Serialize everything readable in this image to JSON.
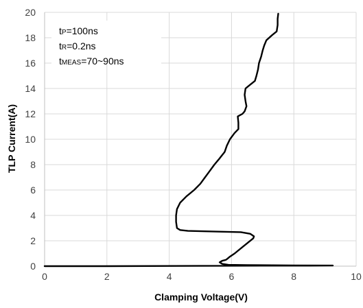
{
  "chart_data": {
    "type": "line",
    "title": "",
    "xlabel": "Clamping Voltage(V)",
    "ylabel": "TLP Current(A)",
    "xlim": [
      0,
      10
    ],
    "ylim": [
      0,
      20
    ],
    "x_ticks": [
      0,
      2,
      4,
      6,
      8,
      10
    ],
    "y_ticks": [
      0,
      2,
      4,
      6,
      8,
      10,
      12,
      14,
      16,
      18,
      20
    ],
    "grid": true,
    "legend": "none",
    "annotations": [
      {
        "prefix": "t",
        "sub": "P",
        "suffix": "=100ns"
      },
      {
        "prefix": "t",
        "sub": "R",
        "suffix": "=0.2ns"
      },
      {
        "prefix": "t",
        "sub": "MEAS",
        "suffix": "=70~90ns"
      }
    ],
    "series": [
      {
        "color": "#000000",
        "points": [
          [
            0.0,
            0.0
          ],
          [
            2.0,
            0.0
          ],
          [
            5.0,
            0.02
          ],
          [
            7.0,
            0.04
          ],
          [
            8.5,
            0.04
          ],
          [
            9.25,
            0.05
          ],
          [
            8.0,
            0.06
          ],
          [
            6.5,
            0.08
          ],
          [
            5.9,
            0.1
          ],
          [
            5.7,
            0.18
          ],
          [
            5.62,
            0.3
          ],
          [
            5.7,
            0.42
          ],
          [
            5.82,
            0.5
          ],
          [
            5.85,
            0.55
          ],
          [
            5.95,
            0.75
          ],
          [
            6.1,
            1.0
          ],
          [
            6.3,
            1.4
          ],
          [
            6.5,
            1.8
          ],
          [
            6.7,
            2.2
          ],
          [
            6.72,
            2.35
          ],
          [
            6.6,
            2.55
          ],
          [
            6.3,
            2.68
          ],
          [
            5.6,
            2.72
          ],
          [
            4.6,
            2.78
          ],
          [
            4.35,
            2.85
          ],
          [
            4.25,
            3.0
          ],
          [
            4.22,
            3.5
          ],
          [
            4.22,
            4.0
          ],
          [
            4.25,
            4.5
          ],
          [
            4.35,
            5.0
          ],
          [
            4.55,
            5.5
          ],
          [
            4.8,
            6.0
          ],
          [
            5.0,
            6.5
          ],
          [
            5.15,
            7.0
          ],
          [
            5.3,
            7.5
          ],
          [
            5.45,
            8.0
          ],
          [
            5.62,
            8.5
          ],
          [
            5.78,
            9.0
          ],
          [
            5.85,
            9.5
          ],
          [
            5.95,
            10.0
          ],
          [
            6.1,
            10.5
          ],
          [
            6.22,
            10.8
          ],
          [
            6.22,
            11.3
          ],
          [
            6.2,
            11.8
          ],
          [
            6.35,
            12.0
          ],
          [
            6.42,
            12.2
          ],
          [
            6.48,
            12.6
          ],
          [
            6.45,
            13.0
          ],
          [
            6.42,
            13.5
          ],
          [
            6.45,
            14.0
          ],
          [
            6.6,
            14.3
          ],
          [
            6.75,
            14.6
          ],
          [
            6.8,
            15.0
          ],
          [
            6.85,
            15.5
          ],
          [
            6.88,
            16.0
          ],
          [
            6.95,
            16.5
          ],
          [
            7.0,
            17.0
          ],
          [
            7.05,
            17.4
          ],
          [
            7.12,
            17.8
          ],
          [
            7.3,
            18.2
          ],
          [
            7.45,
            18.5
          ],
          [
            7.48,
            19.0
          ],
          [
            7.48,
            19.5
          ],
          [
            7.5,
            19.9
          ]
        ]
      }
    ]
  }
}
